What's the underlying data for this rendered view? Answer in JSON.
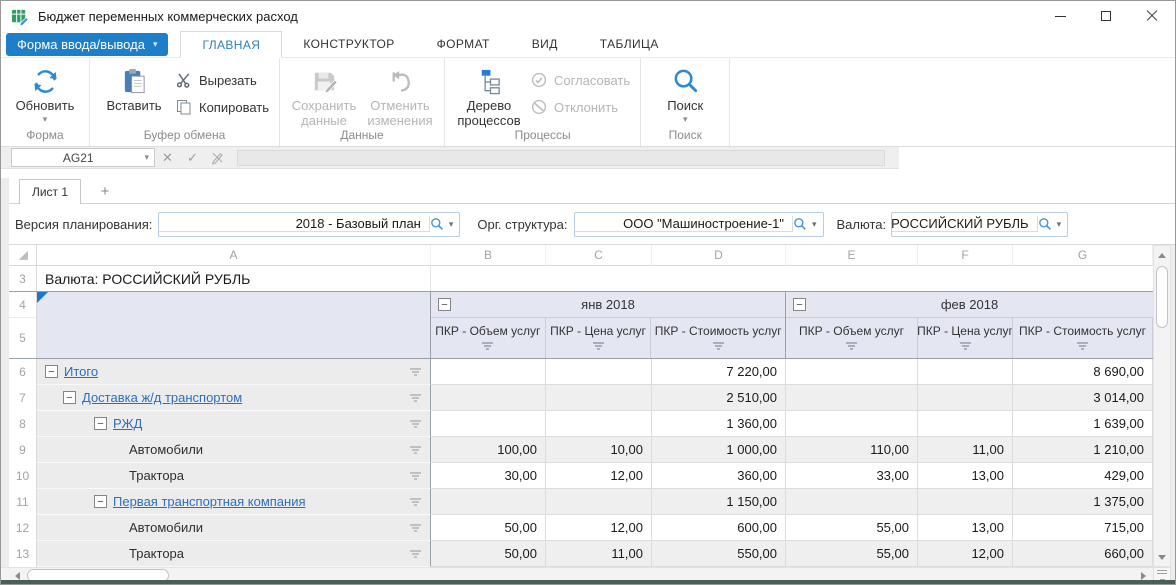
{
  "window": {
    "title": "Бюджет переменных коммерческих расход"
  },
  "menu": {
    "form_button": {
      "label": "Форма ввода/вывода"
    },
    "tabs": [
      {
        "label": "ГЛАВНАЯ",
        "active": true
      },
      {
        "label": "КОНСТРУКТОР",
        "active": false
      },
      {
        "label": "ФОРМАТ",
        "active": false
      },
      {
        "label": "ВИД",
        "active": false
      },
      {
        "label": "ТАБЛИЦА",
        "active": false
      }
    ]
  },
  "ribbon": {
    "groups": [
      {
        "label": "Форма",
        "buttons": [
          {
            "label": "Обновить",
            "icon": "refresh-icon",
            "size": "large",
            "enabled": true,
            "dropdown": true
          }
        ]
      },
      {
        "label": "Буфер обмена",
        "buttons": [
          {
            "label": "Вставить",
            "icon": "paste-icon",
            "size": "large",
            "enabled": true,
            "dropdown": false
          },
          {
            "label": "Вырезать",
            "icon": "cut-icon",
            "size": "small",
            "enabled": true,
            "dropdown": false
          },
          {
            "label": "Копировать",
            "icon": "copy-icon",
            "size": "small",
            "enabled": true,
            "dropdown": false
          }
        ]
      },
      {
        "label": "Данные",
        "buttons": [
          {
            "label": "Сохранить данные",
            "icon": "save-icon",
            "size": "large",
            "enabled": false,
            "dropdown": false
          },
          {
            "label": "Отменить изменения",
            "icon": "undo-icon",
            "size": "large",
            "enabled": false,
            "dropdown": false
          }
        ]
      },
      {
        "label": "Процессы",
        "buttons": [
          {
            "label": "Дерево процессов",
            "icon": "process-tree-icon",
            "size": "large",
            "enabled": true,
            "dropdown": false
          },
          {
            "label": "Согласовать",
            "icon": "approve-icon",
            "size": "small",
            "enabled": false,
            "dropdown": false
          },
          {
            "label": "Отклонить",
            "icon": "reject-icon",
            "size": "small",
            "enabled": false,
            "dropdown": false
          }
        ]
      },
      {
        "label": "Поиск",
        "buttons": [
          {
            "label": "Поиск",
            "icon": "search-icon",
            "size": "large",
            "enabled": true,
            "dropdown": true
          }
        ]
      }
    ]
  },
  "formula_bar": {
    "cell_ref": "AG21",
    "value": ""
  },
  "sheet_tabs": {
    "tabs": [
      "Лист 1"
    ],
    "add_label": "+"
  },
  "filters": [
    {
      "key": "version-filter",
      "label": "Версия планирования:",
      "value": "2018 - Базовый план"
    },
    {
      "key": "org-structure-filter",
      "label": "Орг. структура:",
      "value": "ООО \"Машиностроение-1\""
    },
    {
      "key": "currency-filter",
      "label": "Валюта:",
      "value": "РОССИЙСКИЙ РУБЛЬ"
    }
  ],
  "grid": {
    "column_letters": [
      "A",
      "B",
      "C",
      "D",
      "E",
      "F",
      "G"
    ],
    "currency_row": {
      "num": "3",
      "label": "Валюта: РОССИЙСКИЙ РУБЛЬ"
    },
    "header_row_nums": [
      "4",
      "5"
    ],
    "month_groups": [
      {
        "label": "янв 2018",
        "columns": [
          "ПКР - Объем услуг",
          "ПКР - Цена услуг",
          "ПКР - Стоимость услуг"
        ]
      },
      {
        "label": "фев 2018",
        "columns": [
          "ПКР - Объем услуг",
          "ПКР - Цена услуг",
          "ПКР - Стоимость услуг"
        ]
      }
    ],
    "rows": [
      {
        "num": "6",
        "label": "Итого",
        "level": 0,
        "expandable": true,
        "link": true,
        "values": [
          "",
          "",
          "7 220,00",
          "",
          "",
          "8 690,00"
        ]
      },
      {
        "num": "7",
        "label": "Доставка ж/д транспортом",
        "level": 1,
        "expandable": true,
        "link": true,
        "values": [
          "",
          "",
          "2 510,00",
          "",
          "",
          "3 014,00"
        ]
      },
      {
        "num": "8",
        "label": "РЖД",
        "level": 2,
        "expandable": true,
        "link": true,
        "values": [
          "",
          "",
          "1 360,00",
          "",
          "",
          "1 639,00"
        ]
      },
      {
        "num": "9",
        "label": "Автомобили",
        "level": 3,
        "expandable": false,
        "link": false,
        "values": [
          "100,00",
          "10,00",
          "1 000,00",
          "110,00",
          "11,00",
          "1 210,00"
        ]
      },
      {
        "num": "10",
        "label": "Трактора",
        "level": 3,
        "expandable": false,
        "link": false,
        "values": [
          "30,00",
          "12,00",
          "360,00",
          "33,00",
          "13,00",
          "429,00"
        ]
      },
      {
        "num": "11",
        "label": "Первая транспортная компания",
        "level": 2,
        "expandable": true,
        "link": true,
        "values": [
          "",
          "",
          "1 150,00",
          "",
          "",
          "1 375,00"
        ]
      },
      {
        "num": "12",
        "label": "Автомобили",
        "level": 3,
        "expandable": false,
        "link": false,
        "values": [
          "50,00",
          "12,00",
          "600,00",
          "55,00",
          "13,00",
          "715,00"
        ]
      },
      {
        "num": "13",
        "label": "Трактора",
        "level": 3,
        "expandable": false,
        "link": false,
        "values": [
          "50,00",
          "11,00",
          "550,00",
          "55,00",
          "12,00",
          "660,00"
        ]
      }
    ]
  },
  "icons": {
    "caret_down": "▾",
    "cancel": "✕",
    "confirm": "✓",
    "collapse_minus": "−"
  },
  "colors": {
    "accent_blue": "#1d7ec9",
    "link_blue": "#2a6fbd",
    "header_fill": "#e4e7f2",
    "row_shade": "#efefef",
    "label_column_fill": "#ececec",
    "status_strip": "#4a6057"
  }
}
